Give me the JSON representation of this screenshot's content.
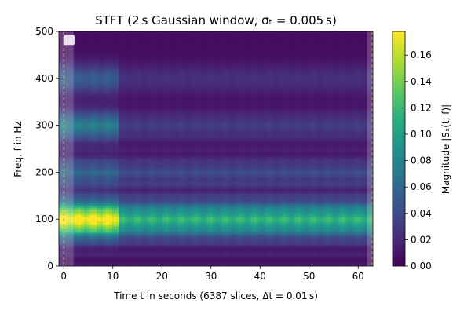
{
  "chart_data": {
    "type": "heatmap",
    "title": "STFT (2 s Gaussian window, σₜ = 0.005 s)",
    "xlabel": "Time t in seconds (6387 slices, Δt = 0.01 s)",
    "ylabel": "Freq. f in Hz",
    "colorbar_label": "Magnitude |Sₓ(t, f)|",
    "xlim": [
      -1,
      63
    ],
    "ylim": [
      0,
      500
    ],
    "xticks": [
      0,
      10,
      20,
      30,
      40,
      50,
      60
    ],
    "yticks": [
      0,
      100,
      200,
      300,
      400,
      500
    ],
    "colorbar_range": [
      0,
      0.178
    ],
    "colorbar_ticks": [
      0.0,
      0.02,
      0.04,
      0.06,
      0.08,
      0.1,
      0.12,
      0.14,
      0.16
    ],
    "colorbar_tick_labels": [
      "0.00",
      "0.02",
      "0.04",
      "0.06",
      "0.08",
      "0.10",
      "0.12",
      "0.14",
      "0.16"
    ],
    "colormap": "viridis",
    "grid": false,
    "legend": "top-left (empty handle)",
    "window_border_lines_t": [
      0.0,
      62.86
    ],
    "window_border_color": "#c8a050",
    "shaded_edge_regions_t": [
      [
        -1.0,
        2.0
      ],
      [
        61.8,
        63.0
      ]
    ],
    "t_change": 11.0,
    "bands": [
      {
        "f": 100,
        "value_before_change": 0.165,
        "value_after_change": 0.1
      },
      {
        "f": 200,
        "value_before_change": 0.045,
        "value_after_change": 0.028
      },
      {
        "f": 300,
        "value_before_change": 0.065,
        "value_after_change": 0.022
      },
      {
        "f": 400,
        "value_before_change": 0.045,
        "value_after_change": 0.018
      }
    ],
    "background_value": 0.006
  }
}
